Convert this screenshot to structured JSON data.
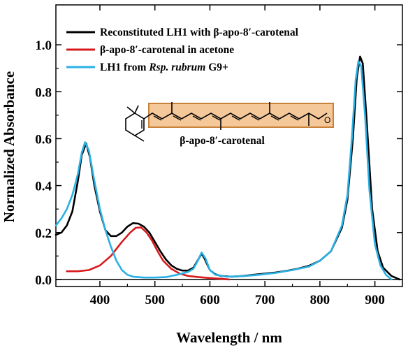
{
  "chart_data": {
    "type": "line",
    "title": "",
    "xlabel": "Wavelength / nm",
    "ylabel": "Normalized Absorbance",
    "xlim": [
      320,
      950
    ],
    "ylim": [
      -0.03,
      1.17
    ],
    "x_ticks": [
      "400",
      "500",
      "600",
      "700",
      "800",
      "900"
    ],
    "y_ticks": [
      "0.0",
      "0.2",
      "0.4",
      "0.6",
      "0.8",
      "1.0"
    ],
    "legend_placement": "top-right",
    "grid": false,
    "series": [
      {
        "name": "Reconstituted LH1 with β-apo-8′-carotenal",
        "color": "#000000",
        "points": [
          [
            320,
            0.19
          ],
          [
            330,
            0.2
          ],
          [
            340,
            0.23
          ],
          [
            350,
            0.29
          ],
          [
            360,
            0.42
          ],
          [
            367,
            0.53
          ],
          [
            375,
            0.58
          ],
          [
            382,
            0.52
          ],
          [
            390,
            0.4
          ],
          [
            400,
            0.29
          ],
          [
            410,
            0.21
          ],
          [
            420,
            0.185
          ],
          [
            430,
            0.185
          ],
          [
            440,
            0.2
          ],
          [
            450,
            0.225
          ],
          [
            460,
            0.24
          ],
          [
            470,
            0.238
          ],
          [
            480,
            0.225
          ],
          [
            490,
            0.2
          ],
          [
            500,
            0.16
          ],
          [
            510,
            0.12
          ],
          [
            520,
            0.085
          ],
          [
            530,
            0.06
          ],
          [
            540,
            0.045
          ],
          [
            550,
            0.038
          ],
          [
            560,
            0.038
          ],
          [
            570,
            0.05
          ],
          [
            580,
            0.09
          ],
          [
            585,
            0.11
          ],
          [
            590,
            0.09
          ],
          [
            600,
            0.04
          ],
          [
            610,
            0.022
          ],
          [
            620,
            0.015
          ],
          [
            640,
            0.012
          ],
          [
            660,
            0.015
          ],
          [
            680,
            0.02
          ],
          [
            700,
            0.025
          ],
          [
            720,
            0.03
          ],
          [
            740,
            0.037
          ],
          [
            760,
            0.046
          ],
          [
            780,
            0.058
          ],
          [
            800,
            0.08
          ],
          [
            820,
            0.12
          ],
          [
            840,
            0.22
          ],
          [
            850,
            0.34
          ],
          [
            860,
            0.6
          ],
          [
            867,
            0.86
          ],
          [
            873,
            0.95
          ],
          [
            878,
            0.92
          ],
          [
            885,
            0.68
          ],
          [
            895,
            0.3
          ],
          [
            905,
            0.12
          ],
          [
            915,
            0.05
          ],
          [
            930,
            0.015
          ],
          [
            945,
            0.0
          ]
        ]
      },
      {
        "name": "β-apo-8′-carotenal in acetone",
        "color": "#d7191c",
        "points": [
          [
            340,
            0.035
          ],
          [
            360,
            0.035
          ],
          [
            380,
            0.04
          ],
          [
            400,
            0.06
          ],
          [
            420,
            0.1
          ],
          [
            440,
            0.16
          ],
          [
            455,
            0.2
          ],
          [
            465,
            0.22
          ],
          [
            475,
            0.222
          ],
          [
            485,
            0.2
          ],
          [
            495,
            0.165
          ],
          [
            505,
            0.12
          ],
          [
            515,
            0.08
          ],
          [
            530,
            0.045
          ],
          [
            545,
            0.025
          ],
          [
            560,
            0.015
          ],
          [
            580,
            0.01
          ],
          [
            600,
            0.006
          ],
          [
            620,
            0.003
          ],
          [
            635,
            0.0
          ]
        ]
      },
      {
        "name": "LH1 from Rsp. rubrum G9+",
        "color": "#2ab0e4",
        "points": [
          [
            320,
            0.23
          ],
          [
            330,
            0.26
          ],
          [
            340,
            0.3
          ],
          [
            350,
            0.36
          ],
          [
            360,
            0.45
          ],
          [
            367,
            0.54
          ],
          [
            373,
            0.585
          ],
          [
            380,
            0.55
          ],
          [
            390,
            0.42
          ],
          [
            400,
            0.3
          ],
          [
            410,
            0.21
          ],
          [
            420,
            0.14
          ],
          [
            430,
            0.08
          ],
          [
            440,
            0.04
          ],
          [
            450,
            0.02
          ],
          [
            460,
            0.012
          ],
          [
            480,
            0.008
          ],
          [
            500,
            0.008
          ],
          [
            520,
            0.01
          ],
          [
            540,
            0.02
          ],
          [
            560,
            0.032
          ],
          [
            570,
            0.045
          ],
          [
            578,
            0.08
          ],
          [
            585,
            0.115
          ],
          [
            592,
            0.09
          ],
          [
            600,
            0.04
          ],
          [
            610,
            0.02
          ],
          [
            630,
            0.012
          ],
          [
            660,
            0.014
          ],
          [
            690,
            0.02
          ],
          [
            720,
            0.028
          ],
          [
            750,
            0.04
          ],
          [
            780,
            0.055
          ],
          [
            800,
            0.08
          ],
          [
            820,
            0.12
          ],
          [
            840,
            0.23
          ],
          [
            850,
            0.36
          ],
          [
            858,
            0.6
          ],
          [
            865,
            0.85
          ],
          [
            870,
            0.93
          ],
          [
            875,
            0.91
          ],
          [
            882,
            0.7
          ],
          [
            890,
            0.38
          ],
          [
            900,
            0.15
          ],
          [
            910,
            0.06
          ],
          [
            920,
            0.02
          ],
          [
            930,
            0.0
          ]
        ]
      }
    ]
  },
  "legend": {
    "item1": "Reconstituted LH1 with β-apo-8′-carotenal",
    "item2": "β-apo-8′-carotenal in acetone",
    "item3_prefix": "LH1 from ",
    "item3_species": "Rsp. rubrum",
    "item3_suffix": " G9+"
  },
  "inset": {
    "label": "β-apo-8′-carotenal",
    "box_color": "#f5c89a",
    "box_border": "#c8823a"
  }
}
